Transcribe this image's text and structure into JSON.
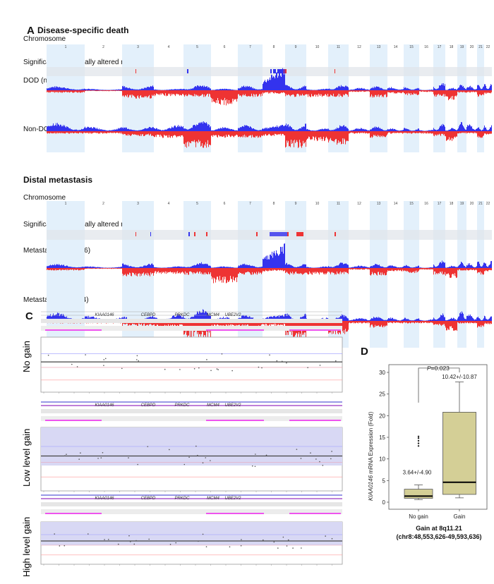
{
  "panel_a": {
    "label": "A",
    "sections": [
      {
        "title": "Disease-specific death",
        "chromosome_label": "Chromosome",
        "region_label": "Significant differentially altered region",
        "tracks": [
          {
            "label": "DOD (n=13)"
          },
          {
            "label": "Non-DOD (n=27)"
          }
        ]
      },
      {
        "title": "Distal metastasis",
        "chromosome_label": "Chromosome",
        "region_label": "Significant differentially altered region",
        "tracks": [
          {
            "label": "Metastasis (+) (n=16)"
          },
          {
            "label": "Metastasis (-) (n=24)"
          }
        ]
      }
    ],
    "chromosomes": [
      "1",
      "2",
      "3",
      "4",
      "5",
      "6",
      "7",
      "8",
      "9",
      "10",
      "11",
      "12",
      "13",
      "14",
      "15",
      "16",
      "17",
      "18",
      "19",
      "20",
      "21",
      "22"
    ]
  },
  "panel_c": {
    "label": "C",
    "genes": [
      "KIAA0146",
      "CEBPD",
      "PRKDC",
      "MCM4",
      "UBE2V2"
    ],
    "subpanels": [
      {
        "label": "No gain"
      },
      {
        "label": "Low level gain"
      },
      {
        "label": "High level gain"
      }
    ]
  },
  "colors": {
    "gain": "#3333ee",
    "loss": "#ee3333",
    "chrom_band": "#e3f0fb",
    "box": "#d4cf96",
    "highlight": "#d8d8f4"
  },
  "chart_data": {
    "type": "box",
    "panel_label": "D",
    "ylabel_italic": "KIAA0146",
    "ylabel_rest": " mRNA Expression (Fold)",
    "xlabel_line1": "Gain at 8q11.21",
    "xlabel_line2": "(chr8:48,553,626-49,593,636)",
    "ylim": [
      0,
      30
    ],
    "yticks": [
      "0",
      "5",
      "10",
      "15",
      "20",
      "25",
      "30"
    ],
    "categories": [
      "No gain",
      "Gain"
    ],
    "boxes": [
      {
        "name": "No gain",
        "whisker_low": 0.6,
        "q1": 0.9,
        "median": 1.4,
        "q3": 3.0,
        "whisker_high": 4.0,
        "outliers": [
          13.0,
          13.6,
          14.2,
          14.8,
          15.2
        ],
        "annotation": "3.64+/-4.90",
        "annotation_y": 6.9
      },
      {
        "name": "Gain",
        "whisker_low": 1.0,
        "q1": 1.8,
        "median": 4.6,
        "q3": 20.8,
        "whisker_high": 27.8,
        "outliers": [],
        "annotation": "10.42+/-10.87",
        "annotation_y": 29
      }
    ],
    "p_label_italic": "P",
    "p_label_rest": "=0.023"
  }
}
